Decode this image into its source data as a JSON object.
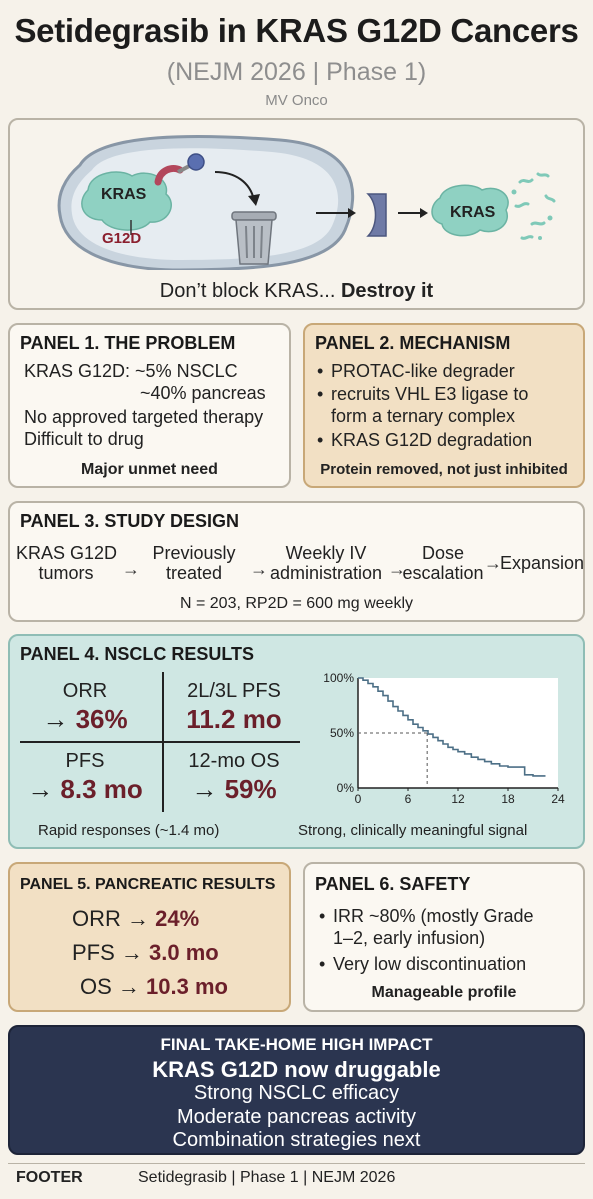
{
  "header": {
    "title": "Setidegrasib in KRAS G12D Cancers",
    "subtitle": "(NEJM 2026 | Phase 1)",
    "author": "MV Onco"
  },
  "hero": {
    "kras_label": "KRAS",
    "g12d_label": "G12D",
    "kras_fragment_label": "KRAS",
    "tagline_prefix": "Don’t block KRAS... ",
    "tagline_bold": "Destroy it"
  },
  "panel1": {
    "title": "PANEL 1. THE PROBLEM",
    "line1": "KRAS G12D: ~5% NSCLC",
    "line2": "~40% pancreas",
    "line3": "No approved targeted therapy",
    "line4": "Difficult to drug",
    "footer": "Major unmet need"
  },
  "panel2": {
    "title": "PANEL 2. MECHANISM",
    "bullet1": "PROTAC-like degrader",
    "bullet2a": "recruits VHL E3 ligase to",
    "bullet2b": "form a ternary complex",
    "bullet3": "KRAS G12D degradation",
    "footer": "Protein removed, not just inhibited"
  },
  "panel3": {
    "title": "PANEL 3. STUDY DESIGN",
    "step1a": "KRAS G12D",
    "step1b": "tumors",
    "step2a": "Previously",
    "step2b": "treated",
    "step3a": "Weekly IV",
    "step3b": "administration",
    "step4a": "Dose",
    "step4b": "escalation",
    "step5": "Expansion",
    "arrow": "→",
    "footer": "N = 203, RP2D = 600 mg weekly"
  },
  "panel4": {
    "title": "PANEL 4. NSCLC RESULTS",
    "orr_label": "ORR",
    "orr_value": "36%",
    "pfs23_label": "2L/3L PFS",
    "pfs23_value": "11.2 mo",
    "pfs_label": "PFS",
    "pfs_value": "8.3 mo",
    "os12_label": "12-mo OS",
    "os12_value": "59%",
    "arrow": "→",
    "note_left": "Rapid responses (~1.4 mo)",
    "note_right": "Strong, clinically meaningful signal"
  },
  "chart_data": {
    "type": "line",
    "title": "",
    "xlabel": "",
    "ylabel": "",
    "xlim": [
      0,
      24
    ],
    "ylim": [
      0,
      100
    ],
    "x_ticks": [
      "0",
      "6",
      "12",
      "18",
      "24"
    ],
    "y_ticks": [
      "0%",
      "50%",
      "100%"
    ],
    "median_marker": {
      "x": 8.3,
      "y": 50
    },
    "series": [
      {
        "x": [
          0,
          0.6,
          1.2,
          1.8,
          2.4,
          3.0,
          3.6,
          4.2,
          4.8,
          5.4,
          6.0,
          6.6,
          7.2,
          7.8,
          8.4,
          9.0,
          9.6,
          10.2,
          10.8,
          11.4,
          12.0,
          12.8,
          13.6,
          14.4,
          15.2,
          16.0,
          17.0,
          18.0,
          19.0,
          20.0,
          21.0,
          22.5
        ],
        "y": [
          100,
          98,
          95,
          92,
          88,
          84,
          79,
          74,
          70,
          66,
          62,
          58,
          55,
          52,
          49,
          46,
          43,
          40,
          37,
          35,
          33,
          31,
          28,
          26,
          24,
          22,
          20,
          19,
          19,
          12,
          11,
          11
        ]
      }
    ]
  },
  "panel5": {
    "title": "PANEL 5. PANCREATIC RESULTS",
    "orr_label": "ORR → ",
    "orr_value": "24%",
    "pfs_label": "PFS → ",
    "pfs_value": "3.0 mo",
    "os_label": "OS → ",
    "os_value": "10.3 mo"
  },
  "panel6": {
    "title": "PANEL 6. SAFETY",
    "bullet1a": "IRR ~80% (mostly Grade",
    "bullet1b": "1–2, early infusion)",
    "bullet2": "Very low discontinuation",
    "footer": "Manageable profile"
  },
  "final": {
    "title": "FINAL TAKE-HOME HIGH IMPACT",
    "headline": "KRAS G12D now druggable",
    "line1": "Strong NSCLC efficacy",
    "line2": "Moderate pancreas activity",
    "line3": "Combination strategies next"
  },
  "footer": {
    "label": "FOOTER",
    "text": "Setidegrasib | Phase 1 | NEJM 2026"
  },
  "colors": {
    "panel_tan": "#f2e0c4",
    "panel_teal": "#cfe7e3",
    "final_navy": "#2b3550",
    "value_maroon": "#6b1f2a",
    "kras_green": "#8fd1c2"
  }
}
